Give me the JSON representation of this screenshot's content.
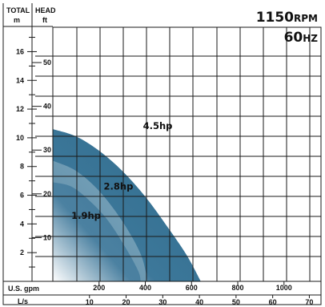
{
  "axes": {
    "left_header_top": "TOTAL",
    "left_header_bottom": "m",
    "right_header_top": "HEAD",
    "right_header_bottom": "ft",
    "bottom_label_gpm": "U.S. gpm",
    "bottom_label_ls": "L/s"
  },
  "speed": {
    "rpm_value": "1150",
    "rpm_unit": "RPM",
    "hz_value": "60",
    "hz_unit": "HZ"
  },
  "chart_data": {
    "type": "area",
    "x_unit": "U.S. gpm",
    "y_unit": "m",
    "xlim": [
      0,
      1160
    ],
    "ylim": [
      0,
      17.7
    ],
    "grid": true,
    "ticks": {
      "m": [
        2,
        4,
        6,
        8,
        10,
        12,
        14,
        16
      ],
      "ft": [
        10,
        20,
        30,
        40,
        50
      ],
      "gpm": [
        200,
        400,
        600,
        800,
        1000
      ],
      "ls": [
        10,
        20,
        30,
        40,
        50,
        60,
        70
      ]
    },
    "tick_labels": {
      "m": [
        "2",
        "4",
        "6",
        "8",
        "10",
        "12",
        "14",
        "16"
      ],
      "ft": [
        "10",
        "20",
        "30",
        "40",
        "50"
      ],
      "gpm": [
        "200",
        "400",
        "600",
        "800",
        "1000"
      ],
      "ls": [
        "10",
        "20",
        "30",
        "40",
        "50",
        "60",
        "70"
      ]
    },
    "series": [
      {
        "name": "4.5hp",
        "color": "#2f6b8c",
        "x": [
          0,
          100,
          200,
          300,
          400,
          500,
          580,
          640
        ],
        "y": [
          10.6,
          10.1,
          9.1,
          7.7,
          5.9,
          3.7,
          1.8,
          0
        ]
      },
      {
        "name": "2.8hp",
        "color": "#6d9ab3",
        "x": [
          0,
          100,
          200,
          300,
          380,
          410
        ],
        "y": [
          8.4,
          7.7,
          6.3,
          4.2,
          1.9,
          0
        ]
      },
      {
        "name": "1.9hp",
        "color": "#4f84a3",
        "x": [
          0,
          80,
          160,
          240,
          320,
          370,
          380
        ],
        "y": [
          6.9,
          6.6,
          5.6,
          4.2,
          2.2,
          0.7,
          0
        ]
      }
    ]
  }
}
